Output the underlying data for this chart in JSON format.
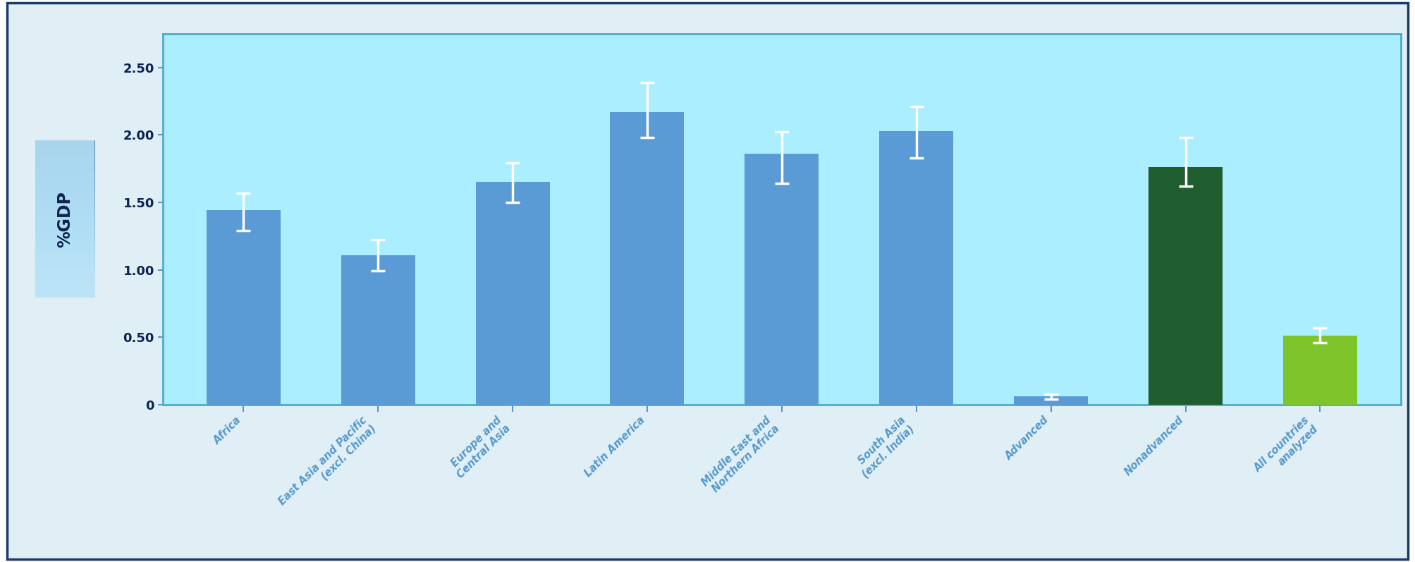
{
  "categories": [
    "Africa",
    "East Asia and Pacific\n(excl. China)",
    "Europe and\nCentral Asia",
    "Latin America",
    "Middle East and\nNorthern Africa",
    "South Asia\n(excl. India)",
    "Advanced",
    "Nonadvanced",
    "All countries\nanalyzed"
  ],
  "values": [
    1.44,
    1.11,
    1.65,
    2.17,
    1.86,
    2.03,
    0.06,
    1.76,
    0.51
  ],
  "errors_upper": [
    0.13,
    0.11,
    0.14,
    0.22,
    0.16,
    0.18,
    0.02,
    0.22,
    0.06
  ],
  "errors_lower": [
    0.15,
    0.12,
    0.15,
    0.19,
    0.22,
    0.2,
    0.02,
    0.14,
    0.05
  ],
  "bar_colors": [
    "#5B9BD5",
    "#5B9BD5",
    "#5B9BD5",
    "#5B9BD5",
    "#5B9BD5",
    "#5B9BD5",
    "#5B9BD5",
    "#1F5C2E",
    "#7DC52A"
  ],
  "plot_bg_color": "#AAEEFF",
  "fig_bg_color": "#E0EEF5",
  "outer_bg_color": "#FFFFFF",
  "ylabel": "%GDP",
  "ylabel_text_color": "#0D2350",
  "tick_label_color": "#0D2350",
  "ytick_labels": [
    "0",
    "0.50",
    "1.00",
    "1.50",
    "2.00",
    "2.50"
  ],
  "ylim": [
    0,
    2.75
  ],
  "yticks": [
    0,
    0.5,
    1.0,
    1.5,
    2.0,
    2.5
  ],
  "error_bar_color": "white",
  "axis_color": "#5599CC",
  "border_color": "#1A3A6B",
  "inner_border_color": "#4DAACC"
}
